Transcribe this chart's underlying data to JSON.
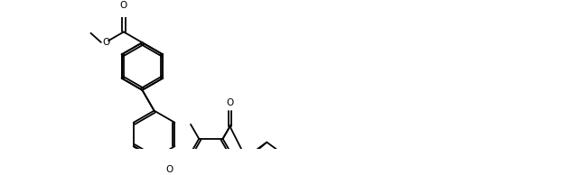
{
  "background_color": "#ffffff",
  "line_color": "#000000",
  "line_width": 1.3,
  "figsize": [
    6.22,
    1.94
  ],
  "dpi": 100,
  "xlim": [
    0,
    12
  ],
  "ylim": [
    0,
    4
  ]
}
